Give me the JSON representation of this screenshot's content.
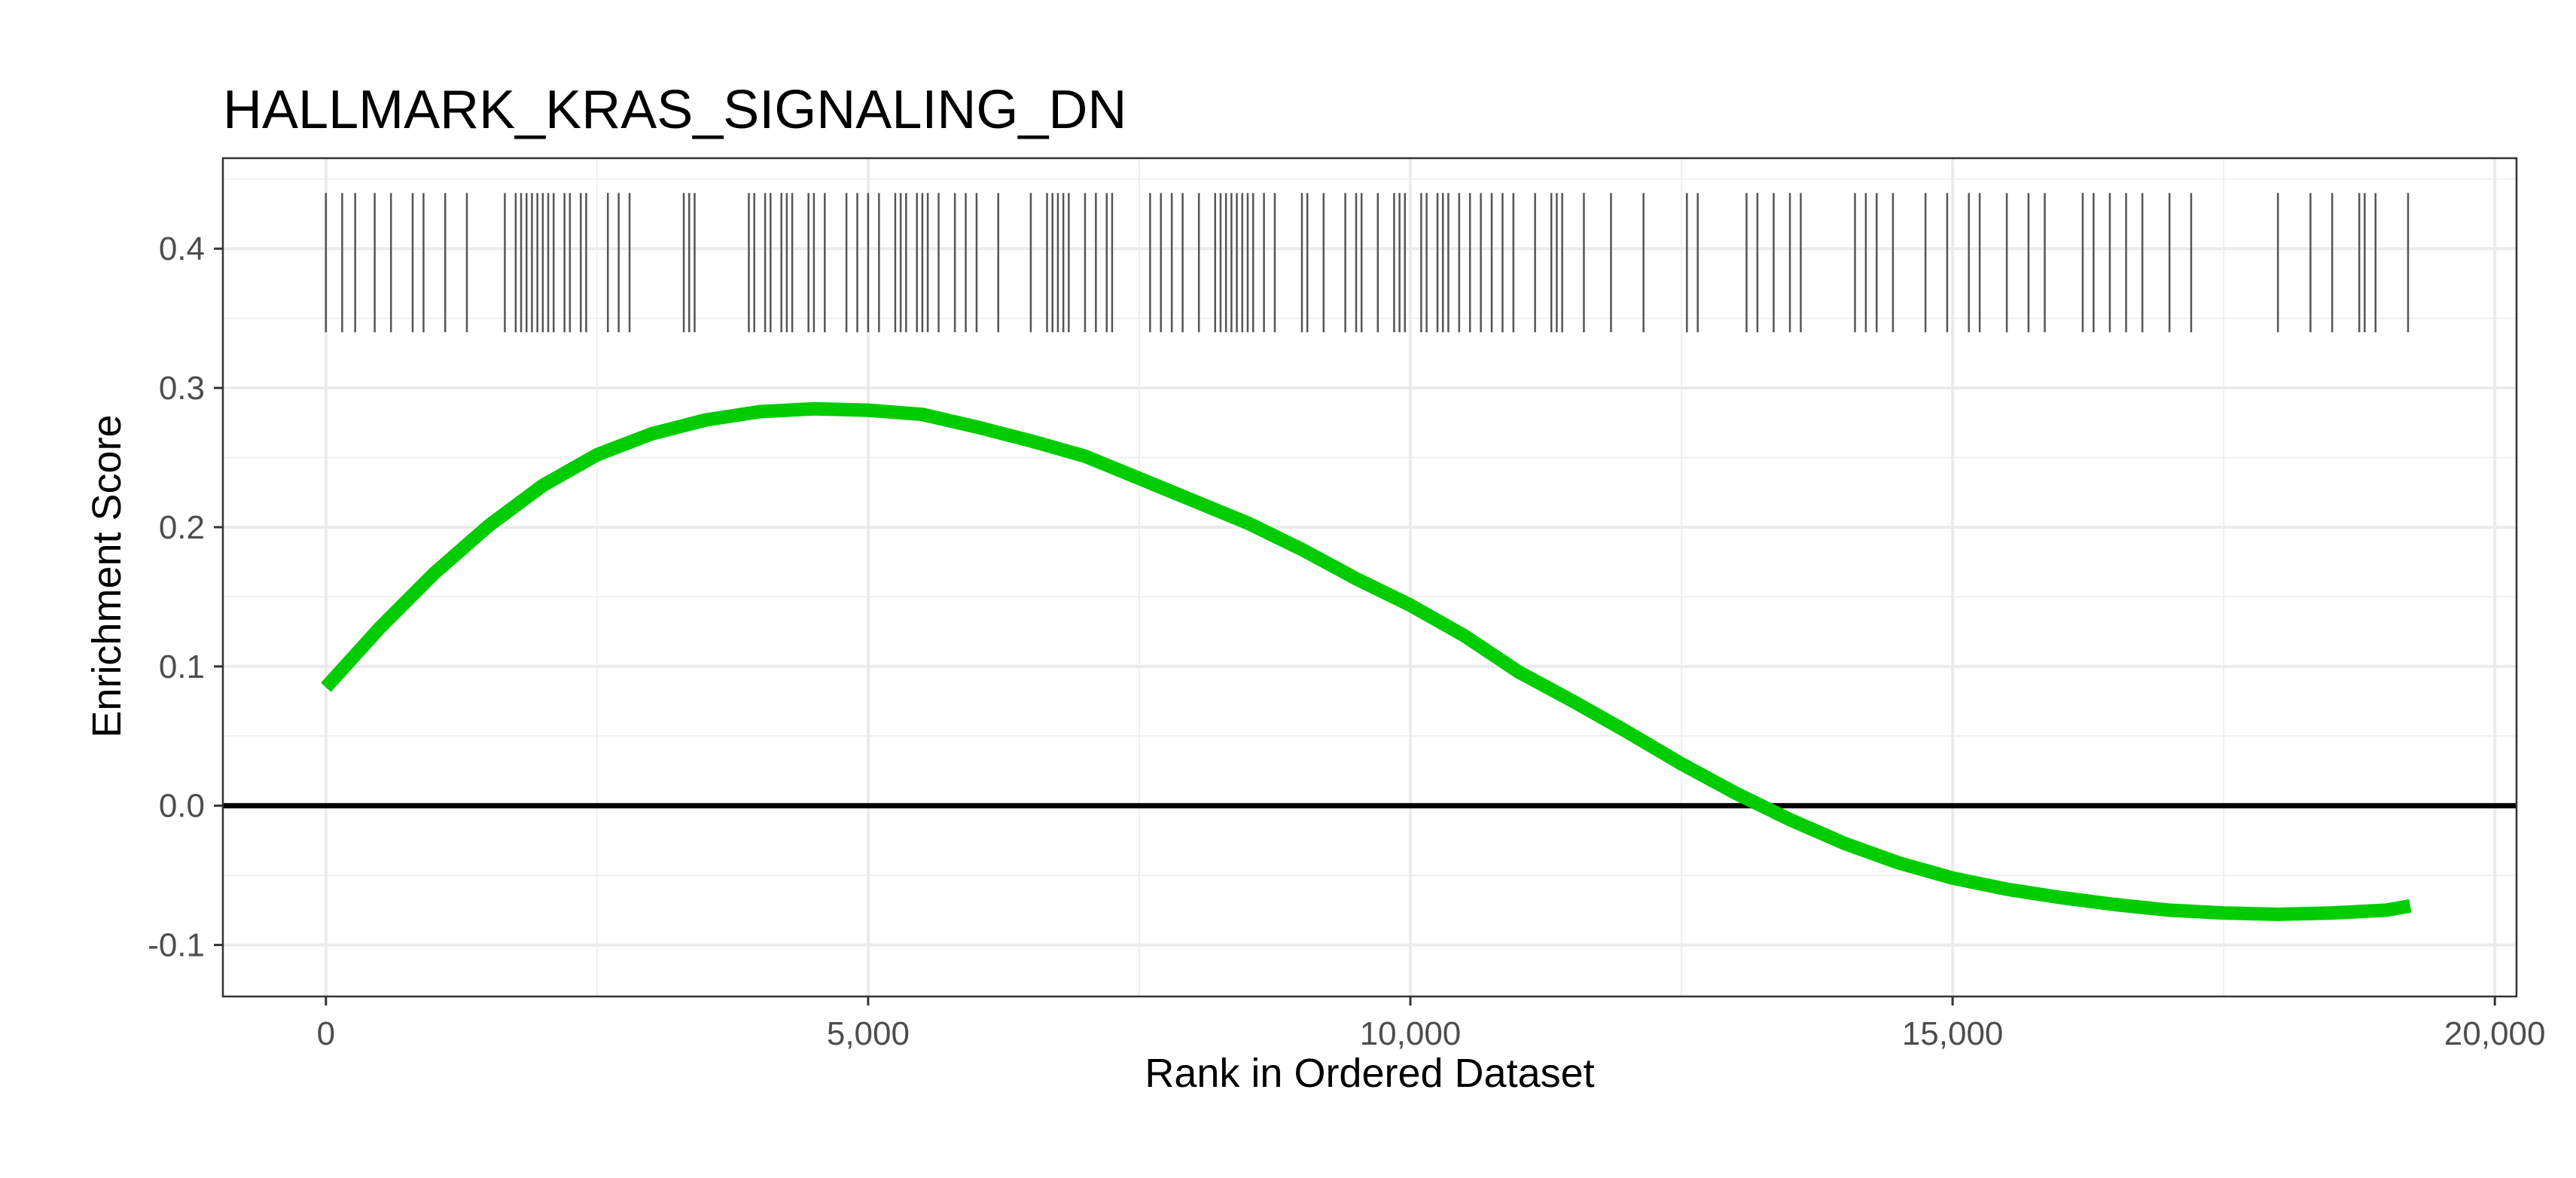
{
  "chart_data": {
    "type": "line",
    "title": "HALLMARK_KRAS_SIGNALING_DN",
    "xlabel": "Rank in Ordered Dataset",
    "ylabel": "Enrichment Score",
    "xlim": [
      -950,
      20200
    ],
    "ylim": [
      -0.137,
      0.465
    ],
    "x_ticks": [
      0,
      5000,
      10000,
      15000,
      20000
    ],
    "x_tick_labels": [
      "0",
      "5,000",
      "10,000",
      "15,000",
      "20,000"
    ],
    "y_ticks": [
      -0.1,
      0.0,
      0.1,
      0.2,
      0.3,
      0.4
    ],
    "y_tick_labels": [
      "-0.1",
      "0.0",
      "0.1",
      "0.2",
      "0.3",
      "0.4"
    ],
    "grid": true,
    "line_color": "#00cc00",
    "hit_color": "#555555",
    "zero_line_color": "#000000",
    "hit_band": [
      0.34,
      0.44
    ],
    "series": [
      {
        "x": [
          0,
          500,
          1000,
          1500,
          2000,
          2500,
          3000,
          3500,
          4000,
          4500,
          5000,
          5500,
          6000,
          6500,
          7000,
          7500,
          8000,
          8500,
          9000,
          9500,
          10000,
          10500,
          11000,
          11500,
          12000,
          12500,
          13000,
          13500,
          14000,
          14500,
          15000,
          15500,
          16000,
          16500,
          17000,
          17500,
          18000,
          18500,
          19000,
          19220
        ],
        "values": [
          0.085,
          0.128,
          0.167,
          0.201,
          0.23,
          0.252,
          0.267,
          0.277,
          0.283,
          0.285,
          0.284,
          0.281,
          0.272,
          0.262,
          0.251,
          0.235,
          0.219,
          0.203,
          0.184,
          0.163,
          0.144,
          0.122,
          0.096,
          0.075,
          0.053,
          0.03,
          0.009,
          -0.01,
          -0.027,
          -0.041,
          -0.052,
          -0.06,
          -0.066,
          -0.071,
          -0.075,
          -0.077,
          -0.078,
          -0.077,
          -0.075,
          -0.072
        ]
      }
    ],
    "hits": [
      0,
      150,
      270,
      450,
      600,
      800,
      900,
      1100,
      1300,
      1650,
      1750,
      1800,
      1850,
      1900,
      1950,
      2000,
      2050,
      2100,
      2200,
      2250,
      2350,
      2400,
      2600,
      2700,
      2800,
      3300,
      3350,
      3400,
      3900,
      3950,
      4050,
      4100,
      4200,
      4250,
      4300,
      4450,
      4500,
      4600,
      4800,
      4900,
      5000,
      5100,
      5250,
      5300,
      5350,
      5450,
      5500,
      5550,
      5650,
      5800,
      5900,
      6000,
      6200,
      6500,
      6650,
      6700,
      6750,
      6800,
      6850,
      7000,
      7100,
      7200,
      7250,
      7600,
      7700,
      7800,
      7900,
      8050,
      8200,
      8250,
      8300,
      8350,
      8400,
      8450,
      8500,
      8550,
      8650,
      8750,
      9000,
      9050,
      9200,
      9400,
      9500,
      9550,
      9700,
      9850,
      9900,
      9950,
      10100,
      10150,
      10250,
      10300,
      10350,
      10450,
      10550,
      10650,
      10750,
      10850,
      10950,
      11150,
      11300,
      11350,
      11400,
      11600,
      11850,
      12150,
      12550,
      12650,
      13100,
      13200,
      13350,
      13500,
      13600,
      14100,
      14200,
      14300,
      14450,
      14750,
      14950,
      15150,
      15250,
      15500,
      15700,
      15850,
      16200,
      16300,
      16450,
      16600,
      16750,
      17000,
      17200,
      18000,
      18300,
      18500,
      18750,
      18800,
      18900,
      19200
    ]
  }
}
